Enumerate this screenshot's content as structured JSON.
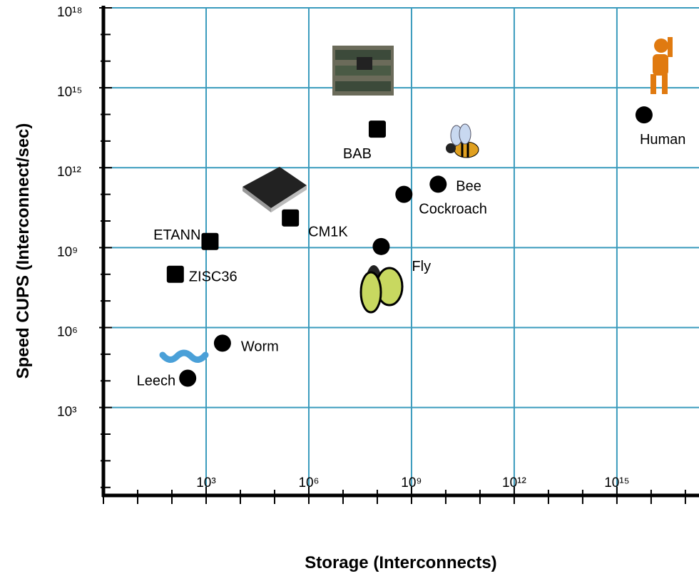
{
  "chart_data": {
    "type": "scatter",
    "x_label": "Storage (Interconnects)",
    "y_label": "Speed CUPS (Interconnect/sec)",
    "log_x": true,
    "log_y": true,
    "grid": true,
    "grid_color": "#3a9bbd",
    "xlim": [
      1,
      2.5e+17
    ],
    "ylim": [
      0.5,
      1e+18
    ],
    "xticks": [
      {
        "value": 1000.0,
        "label": "10³"
      },
      {
        "value": 1000000.0,
        "label": "10⁶"
      },
      {
        "value": 1000000000.0,
        "label": "10⁹"
      },
      {
        "value": 1000000000000.0,
        "label": "10¹²"
      },
      {
        "value": 1000000000000000.0,
        "label": "10¹⁵"
      }
    ],
    "yticks": [
      {
        "value": 1000.0,
        "label": "10³"
      },
      {
        "value": 1000000.0,
        "label": "10⁶"
      },
      {
        "value": 1000000000.0,
        "label": "10⁹"
      },
      {
        "value": 1000000000000.0,
        "label": "10¹²"
      },
      {
        "value": 1000000000000000.0,
        "label": "10¹⁵"
      },
      {
        "value": 1e+18,
        "label": "10¹⁸"
      }
    ],
    "x_minor_ticks": [
      1,
      10,
      100,
      10000.0,
      100000.0,
      10000000.0,
      100000000.0,
      10000000000.0,
      100000000000.0,
      10000000000000.0,
      100000000000000.0,
      1e+16,
      1e+17
    ],
    "y_minor_ticks": [
      1,
      10,
      100,
      10000.0,
      100000.0,
      10000000.0,
      100000000.0,
      10000000000.0,
      100000000000.0,
      10000000000000.0,
      100000000000000.0,
      1e+16,
      1e+17
    ],
    "series": [
      {
        "marker": "square",
        "color": "#000000",
        "labels": [
          "BAB",
          "CM1K",
          "ETANN",
          "ZISC36"
        ],
        "x": [
          100000000.0,
          290000.0,
          1300.0,
          126
        ],
        "values": [
          28000000000000.0,
          13000000000.0,
          1700000000.0,
          100000000.0
        ]
      },
      {
        "marker": "circle",
        "color": "#000000",
        "labels": [
          "Human",
          "Bee",
          "Cockroach",
          "Fly",
          "Worm",
          "Leech"
        ],
        "x": [
          6200000000000000.0,
          6000000000.0,
          600000000.0,
          130000000.0,
          3000.0,
          290
        ],
        "values": [
          96000000000000.0,
          240000000000.0,
          100000000000.0,
          1100000000.0,
          260000.0,
          12600.0
        ]
      }
    ]
  }
}
